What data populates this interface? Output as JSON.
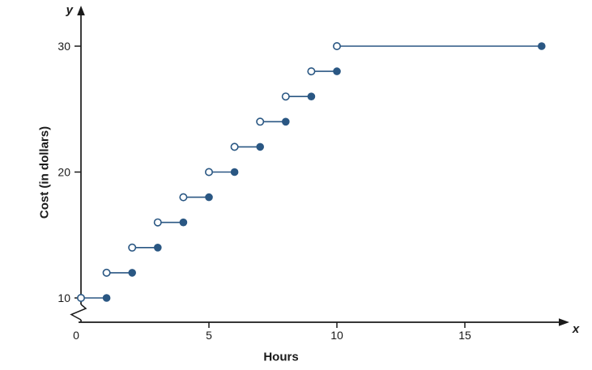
{
  "chart_data": {
    "type": "step",
    "title": "",
    "xlabel": "Hours",
    "ylabel": "Cost (in dollars)",
    "x_axis_letter": "x",
    "y_axis_letter": "y",
    "x_ticks": [
      0,
      5,
      10,
      15
    ],
    "y_ticks": [
      10,
      20,
      30
    ],
    "xlim": [
      0,
      19
    ],
    "ylim": [
      10,
      30
    ],
    "axis_break_on_y_axis": true,
    "grid": false,
    "legend": "none",
    "line_color": "#2a5783",
    "axis_color": "#1a1a1a",
    "point_style": {
      "left_endpoint": "open",
      "right_endpoint": "closed"
    },
    "steps": [
      {
        "x_start": 0,
        "x_end": 1,
        "y": 10
      },
      {
        "x_start": 1,
        "x_end": 2,
        "y": 12
      },
      {
        "x_start": 2,
        "x_end": 3,
        "y": 14
      },
      {
        "x_start": 3,
        "x_end": 4,
        "y": 16
      },
      {
        "x_start": 4,
        "x_end": 5,
        "y": 18
      },
      {
        "x_start": 5,
        "x_end": 6,
        "y": 20
      },
      {
        "x_start": 6,
        "x_end": 7,
        "y": 22
      },
      {
        "x_start": 7,
        "x_end": 8,
        "y": 24
      },
      {
        "x_start": 8,
        "x_end": 9,
        "y": 26
      },
      {
        "x_start": 9,
        "x_end": 10,
        "y": 28
      },
      {
        "x_start": 10,
        "x_end": 18,
        "y": 30
      }
    ]
  }
}
